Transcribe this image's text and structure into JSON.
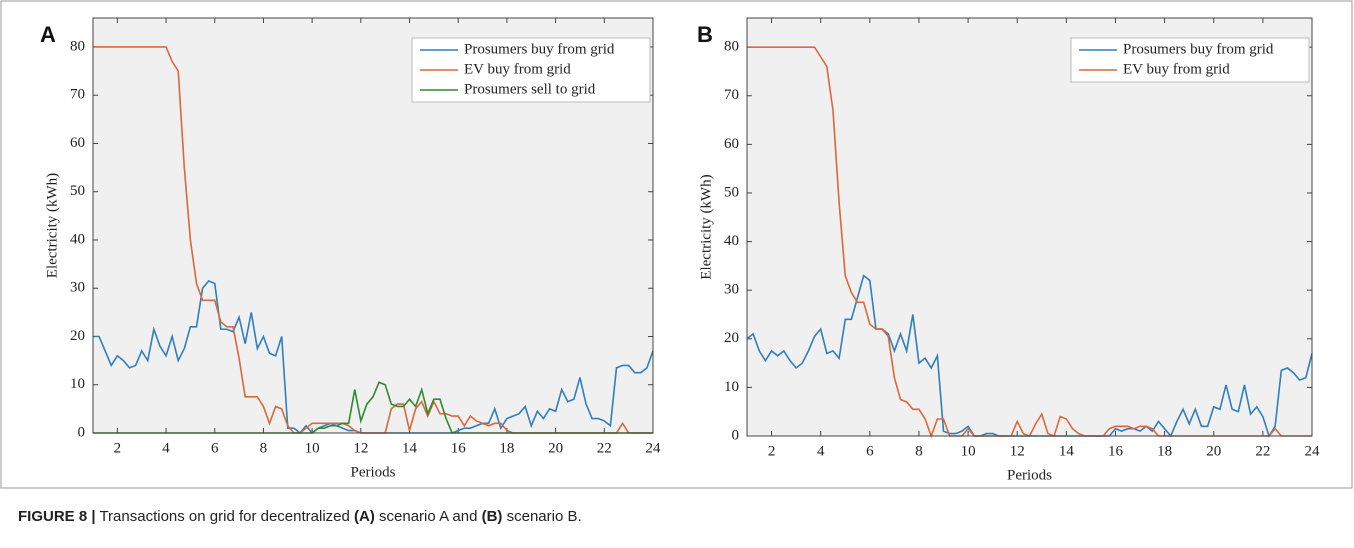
{
  "chart_data": [
    {
      "type": "line",
      "panel_label": "A",
      "xlabel": "Periods",
      "ylabel": "Electricity (kWh)",
      "xlim": [
        1,
        24
      ],
      "ylim": [
        0,
        86
      ],
      "xticks": [
        2,
        4,
        6,
        8,
        10,
        12,
        14,
        16,
        18,
        20,
        22,
        24
      ],
      "yticks": [
        0,
        10,
        20,
        30,
        40,
        50,
        60,
        70,
        80
      ],
      "legend": "upper right",
      "grid": false,
      "x": [
        1,
        1.25,
        1.5,
        1.75,
        2,
        2.25,
        2.5,
        2.75,
        3,
        3.25,
        3.5,
        3.75,
        4,
        4.25,
        4.5,
        4.75,
        5,
        5.25,
        5.5,
        5.75,
        6,
        6.25,
        6.5,
        6.75,
        7,
        7.25,
        7.5,
        7.75,
        8,
        8.25,
        8.5,
        8.75,
        9,
        9.25,
        9.5,
        9.75,
        10,
        10.25,
        10.5,
        10.75,
        11,
        11.25,
        11.5,
        11.75,
        12,
        12.25,
        12.5,
        12.75,
        13,
        13.25,
        13.5,
        13.75,
        14,
        14.25,
        14.5,
        14.75,
        15,
        15.25,
        15.5,
        15.75,
        16,
        16.25,
        16.5,
        16.75,
        17,
        17.25,
        17.5,
        17.75,
        18,
        18.25,
        18.5,
        18.75,
        19,
        19.25,
        19.5,
        19.75,
        20,
        20.25,
        20.5,
        20.75,
        21,
        21.25,
        21.5,
        21.75,
        22,
        22.25,
        22.5,
        22.75,
        23,
        23.25,
        23.5,
        23.75,
        24
      ],
      "series": [
        {
          "name": "Prosumers buy from grid",
          "color": "#2f7fbf",
          "values": [
            20,
            20,
            17,
            14,
            16,
            15,
            13.5,
            14,
            17,
            15,
            21.5,
            18,
            16,
            20,
            15,
            17.5,
            22,
            22,
            30,
            31.5,
            31,
            21.5,
            21.5,
            21,
            24,
            18.5,
            25,
            17.5,
            20,
            16.5,
            16,
            20,
            1,
            1,
            0,
            1.5,
            0,
            1,
            1.5,
            2,
            1.5,
            1,
            0.5,
            0.5,
            0,
            0,
            0,
            0,
            0,
            0,
            0,
            0,
            0,
            0,
            0,
            0,
            0,
            0,
            0,
            0,
            0.5,
            1,
            1,
            1.5,
            2,
            2,
            5,
            1,
            3,
            3.5,
            4,
            5.5,
            1.5,
            4.5,
            3,
            5,
            4.5,
            9,
            6.5,
            7,
            11.5,
            6,
            3,
            3,
            2.5,
            1.5,
            13.5,
            14,
            14,
            12.5,
            12.5,
            13.5,
            17
          ]
        },
        {
          "name": "EV buy from grid",
          "color": "#d9693a",
          "values": [
            80,
            80,
            80,
            80,
            80,
            80,
            80,
            80,
            80,
            80,
            80,
            80,
            80,
            77,
            75,
            55,
            40,
            31,
            27.5,
            27.5,
            27.5,
            23,
            22,
            22,
            15.5,
            7.5,
            7.5,
            7.5,
            5.5,
            2,
            5.5,
            5,
            1.5,
            0,
            0,
            1,
            2,
            2,
            2,
            2,
            2,
            2,
            1.5,
            0.5,
            0,
            0,
            0,
            0,
            0,
            5,
            6,
            6,
            0.5,
            5,
            6.5,
            3.5,
            6.5,
            4,
            4,
            3.5,
            3.5,
            1.5,
            3.5,
            2.5,
            2,
            1.5,
            2,
            2,
            0.5,
            0,
            0,
            0,
            0,
            0,
            0,
            0,
            0,
            0,
            0,
            0,
            0,
            0,
            0,
            0,
            0,
            0,
            0,
            2,
            0,
            0,
            0,
            0,
            0
          ]
        },
        {
          "name": "Prosumers sell to grid",
          "color": "#2e8b2e",
          "values": [
            0,
            0,
            0,
            0,
            0,
            0,
            0,
            0,
            0,
            0,
            0,
            0,
            0,
            0,
            0,
            0,
            0,
            0,
            0,
            0,
            0,
            0,
            0,
            0,
            0,
            0,
            0,
            0,
            0,
            0,
            0,
            0,
            0,
            0,
            0,
            0,
            0,
            1,
            1,
            1.5,
            1.5,
            2,
            2,
            9,
            2.5,
            6,
            7.5,
            10.5,
            10,
            6,
            5.5,
            5.5,
            7,
            5.5,
            9,
            4,
            7,
            7,
            3,
            0,
            0,
            0,
            0,
            0,
            0,
            0,
            0,
            0,
            0,
            0,
            0,
            0,
            0,
            0,
            0,
            0,
            0,
            0,
            0,
            0,
            0,
            0,
            0,
            0,
            0,
            0,
            0,
            0,
            0,
            0,
            0,
            0,
            0
          ]
        }
      ]
    },
    {
      "type": "line",
      "panel_label": "B",
      "xlabel": "Periods",
      "ylabel": "Electricity (kWh)",
      "xlim": [
        1,
        24
      ],
      "ylim": [
        0,
        86
      ],
      "xticks": [
        2,
        4,
        6,
        8,
        10,
        12,
        14,
        16,
        18,
        20,
        22,
        24
      ],
      "yticks": [
        0,
        10,
        20,
        30,
        40,
        50,
        60,
        70,
        80
      ],
      "legend": "upper right",
      "grid": false,
      "x": [
        1,
        1.25,
        1.5,
        1.75,
        2,
        2.25,
        2.5,
        2.75,
        3,
        3.25,
        3.5,
        3.75,
        4,
        4.25,
        4.5,
        4.75,
        5,
        5.25,
        5.5,
        5.75,
        6,
        6.25,
        6.5,
        6.75,
        7,
        7.25,
        7.5,
        7.75,
        8,
        8.25,
        8.5,
        8.75,
        9,
        9.25,
        9.5,
        9.75,
        10,
        10.25,
        10.5,
        10.75,
        11,
        11.25,
        11.5,
        11.75,
        12,
        12.25,
        12.5,
        12.75,
        13,
        13.25,
        13.5,
        13.75,
        14,
        14.25,
        14.5,
        14.75,
        15,
        15.25,
        15.5,
        15.75,
        16,
        16.25,
        16.5,
        16.75,
        17,
        17.25,
        17.5,
        17.75,
        18,
        18.25,
        18.5,
        18.75,
        19,
        19.25,
        19.5,
        19.75,
        20,
        20.25,
        20.5,
        20.75,
        21,
        21.25,
        21.5,
        21.75,
        22,
        22.25,
        22.5,
        22.75,
        23,
        23.25,
        23.5,
        23.75,
        24
      ],
      "series": [
        {
          "name": "Prosumers buy from grid",
          "color": "#2f7fbf",
          "values": [
            20,
            21,
            17.5,
            15.5,
            17.5,
            16.5,
            17.5,
            15.5,
            14,
            15,
            17.5,
            20.5,
            22,
            17,
            17.5,
            16,
            24,
            24,
            28.5,
            33,
            32,
            22,
            22,
            21,
            17.5,
            21,
            17.5,
            25,
            15,
            16,
            14,
            16.5,
            1,
            0.5,
            0.5,
            1,
            2,
            0,
            0,
            0.5,
            0.5,
            0,
            0,
            0,
            0,
            0,
            0,
            0,
            0,
            0,
            0,
            0,
            0,
            0,
            0,
            0,
            0,
            0,
            0,
            0,
            1.5,
            1,
            1.5,
            1.5,
            1,
            2,
            1,
            3,
            1.5,
            0,
            3,
            5.5,
            2.5,
            5.5,
            2,
            2,
            6,
            5.5,
            10.5,
            5.5,
            5,
            10.5,
            4.5,
            6,
            4,
            0,
            2,
            13.5,
            14,
            13,
            11.5,
            12,
            17
          ]
        },
        {
          "name": "EV buy from grid",
          "color": "#d9693a",
          "values": [
            80,
            80,
            80,
            80,
            80,
            80,
            80,
            80,
            80,
            80,
            80,
            80,
            78,
            76,
            67,
            48,
            33,
            29.5,
            27.5,
            27.5,
            23,
            22,
            22,
            20.5,
            12,
            7.5,
            7,
            5.5,
            5.5,
            3.5,
            0,
            3.5,
            3.5,
            0,
            0,
            0,
            1.5,
            0,
            0,
            0,
            0,
            0,
            0,
            0,
            3,
            0.5,
            0,
            2.5,
            4.5,
            0.5,
            0,
            4,
            3.5,
            1.5,
            0.5,
            0,
            0,
            0,
            0,
            1.5,
            2,
            2,
            2,
            1.5,
            2,
            2,
            1.5,
            0,
            0,
            0,
            0,
            0,
            0,
            0,
            0,
            0,
            0,
            0,
            0,
            0,
            0,
            0,
            0,
            0,
            0,
            0,
            1.5,
            0,
            0,
            0,
            0,
            0,
            0
          ]
        }
      ]
    }
  ],
  "caption": [
    {
      "text": "FIGURE 8 |",
      "bold": true
    },
    {
      "text": " Transactions on grid for decentralized ",
      "bold": false
    },
    {
      "text": "(A)",
      "bold": true
    },
    {
      "text": " scenario A and ",
      "bold": false
    },
    {
      "text": "(B)",
      "bold": true
    },
    {
      "text": " scenario B.",
      "bold": false
    }
  ]
}
